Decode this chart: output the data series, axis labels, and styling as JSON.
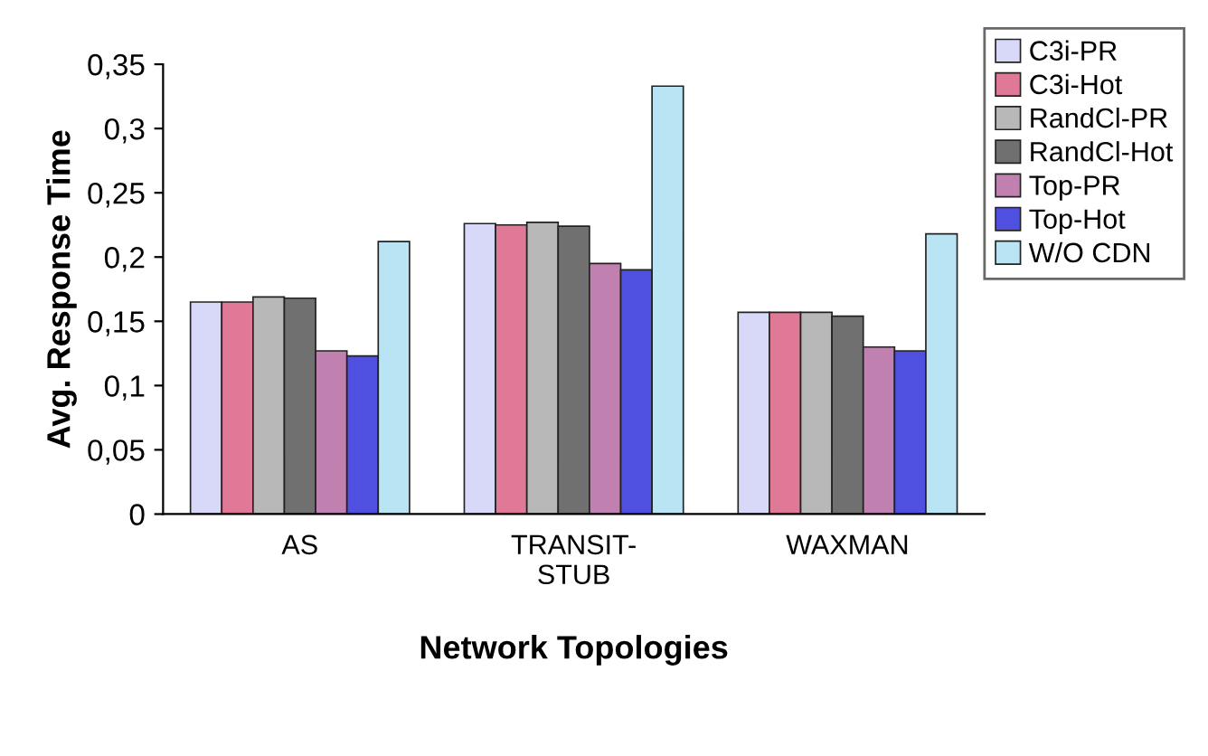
{
  "chart_data": {
    "type": "bar",
    "xlabel": "Network Topologies",
    "ylabel": "Avg. Response Time",
    "categories": [
      "AS",
      "TRANSIT-\nSTUB",
      "WAXMAN"
    ],
    "series": [
      {
        "name": "C3i-PR",
        "color": "#d8d8f8",
        "values": [
          0.165,
          0.226,
          0.157
        ]
      },
      {
        "name": "C3i-Hot",
        "color": "#e07898",
        "values": [
          0.165,
          0.225,
          0.157
        ]
      },
      {
        "name": "RandCl-PR",
        "color": "#b8b8b8",
        "values": [
          0.169,
          0.227,
          0.157
        ]
      },
      {
        "name": "RandCl-Hot",
        "color": "#707070",
        "values": [
          0.168,
          0.224,
          0.154
        ]
      },
      {
        "name": "Top-PR",
        "color": "#c080b0",
        "values": [
          0.127,
          0.195,
          0.13
        ]
      },
      {
        "name": "Top-Hot",
        "color": "#5050e0",
        "values": [
          0.123,
          0.19,
          0.127
        ]
      },
      {
        "name": "W/O CDN",
        "color": "#b8e4f4",
        "values": [
          0.212,
          0.333,
          0.218
        ]
      }
    ],
    "ylim": [
      0,
      0.35
    ],
    "yticks": [
      0,
      {
        "value": 0.05,
        "label": "0,05"
      },
      {
        "value": 0.1,
        "label": "0,1"
      },
      {
        "value": 0.15,
        "label": "0,15"
      },
      {
        "value": 0.2,
        "label": "0,2"
      },
      {
        "value": 0.25,
        "label": "0,25"
      },
      {
        "value": 0.3,
        "label": "0,3"
      },
      {
        "value": 0.35,
        "label": "0,35"
      }
    ],
    "grid": false,
    "legend": "top right"
  }
}
